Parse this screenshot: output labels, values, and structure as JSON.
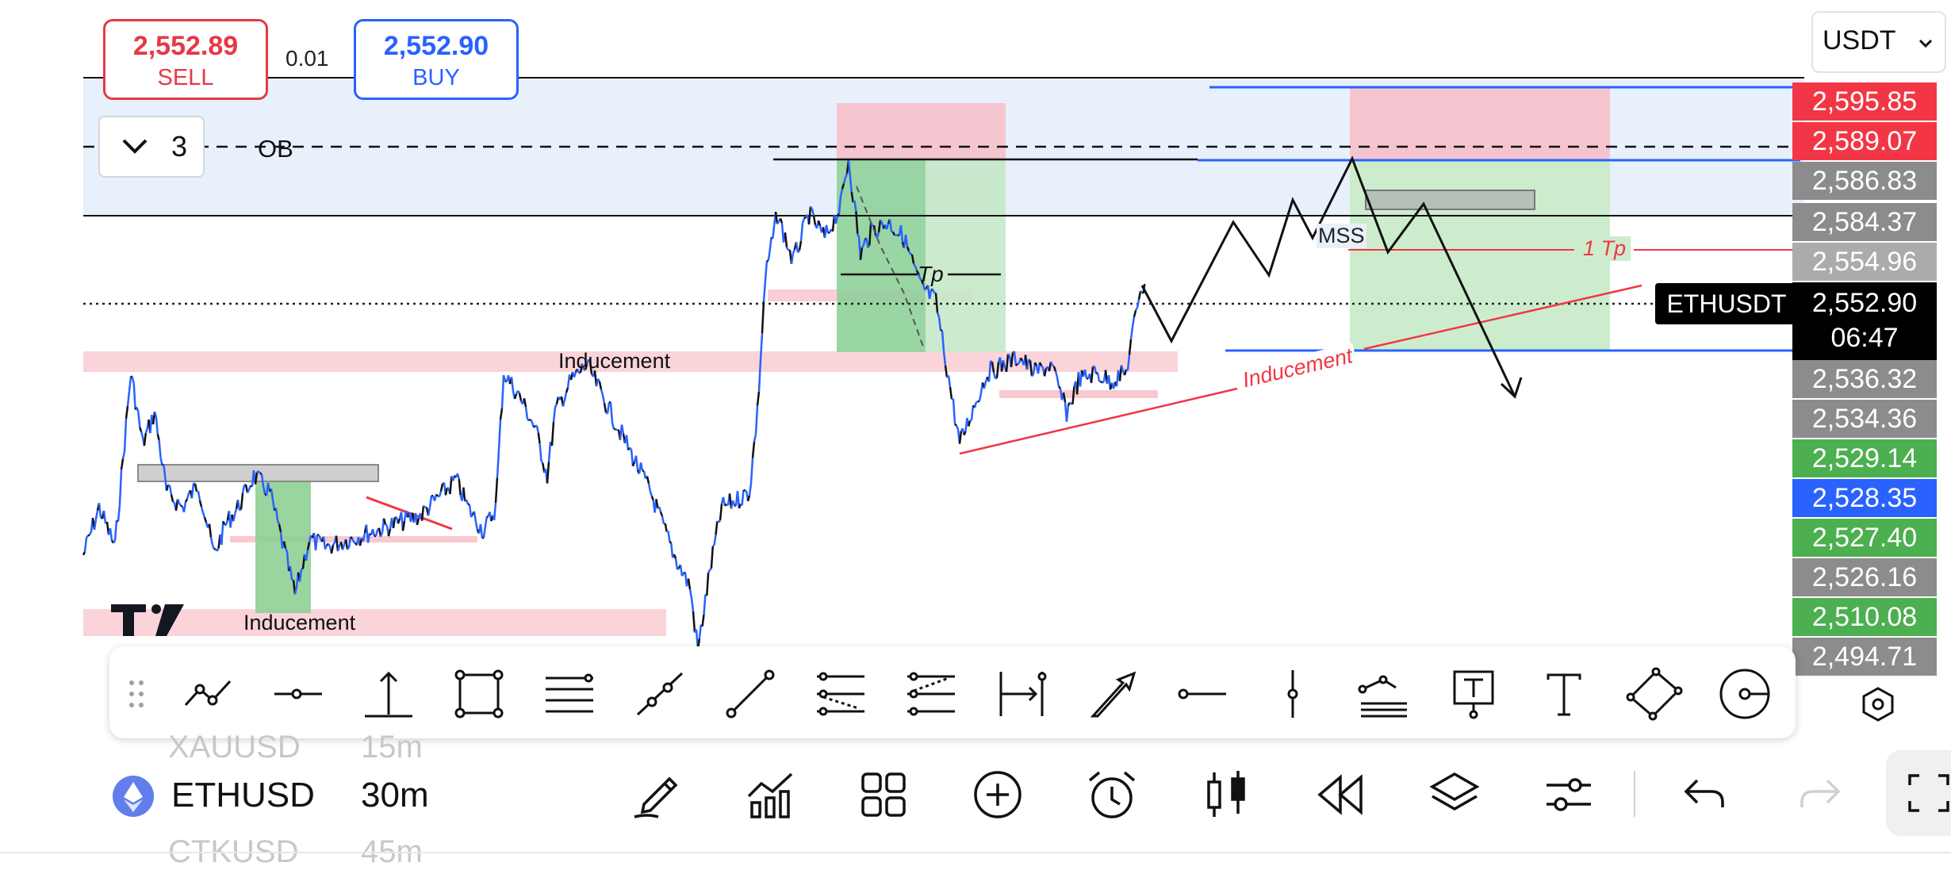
{
  "order_panel": {
    "sell_price": "2,552.89",
    "sell_label": "SELL",
    "spread": "0.01",
    "buy_price": "2,552.90",
    "buy_label": "BUY"
  },
  "currency_select": {
    "value": "USDT"
  },
  "collapse_count": "3",
  "chart_labels": {
    "ob": "OB",
    "mss": "MSS",
    "tp_red": "1 Tp",
    "tp_left": "Tp",
    "inducement_top": "Inducement",
    "inducement_bottom": "Inducement",
    "inducement_red": "Inducement"
  },
  "price_axis": {
    "labels": [
      "2,595.85",
      "2,589.07",
      "2,586.83",
      "2,584.37",
      "2,554.96",
      "2,552.90",
      "2,536.32",
      "2,534.36",
      "2,529.14",
      "2,528.35",
      "2,527.40",
      "2,526.16",
      "2,510.08",
      "2,494.71"
    ],
    "current_price": "2,552.90",
    "countdown": "06:47",
    "symbol_tag": "ETHUSDT"
  },
  "colors": {
    "sell": "#e53946",
    "buy": "#2962ff",
    "red_label": "#f23645",
    "gray_label": "#8c8c8c",
    "green_label": "#4caf50",
    "blue_label": "#2962ff",
    "black_label": "#000000"
  },
  "drawing_tools": [
    "trend-line-tool",
    "horizontal-ray-tool",
    "vertical-range-tool",
    "rectangle-tool",
    "parallel-channel-tool",
    "extended-line-tool",
    "line-segment-tool",
    "fib-retracement-tool",
    "fib-channel-tool",
    "date-range-tool",
    "arrow-tool",
    "horizontal-line-tool",
    "vertical-line-tool",
    "pitchfork-tool",
    "text-note-tool",
    "text-tool",
    "rotated-rectangle-tool",
    "circle-tool"
  ],
  "symbol_picker": {
    "prev": "XAUUSD",
    "prev_tf": "15m",
    "current": "ETHUSD",
    "current_tf": "30m",
    "next": "CTKUSD",
    "next_tf": "45m"
  },
  "bottom_icons": [
    "pencil-icon",
    "indicators-icon",
    "grid-icon",
    "plus-circle-icon",
    "alarm-icon",
    "candles-icon",
    "replay-icon",
    "layers-icon",
    "settings-icon",
    "undo-icon",
    "redo-icon",
    "fullscreen-icon"
  ]
}
